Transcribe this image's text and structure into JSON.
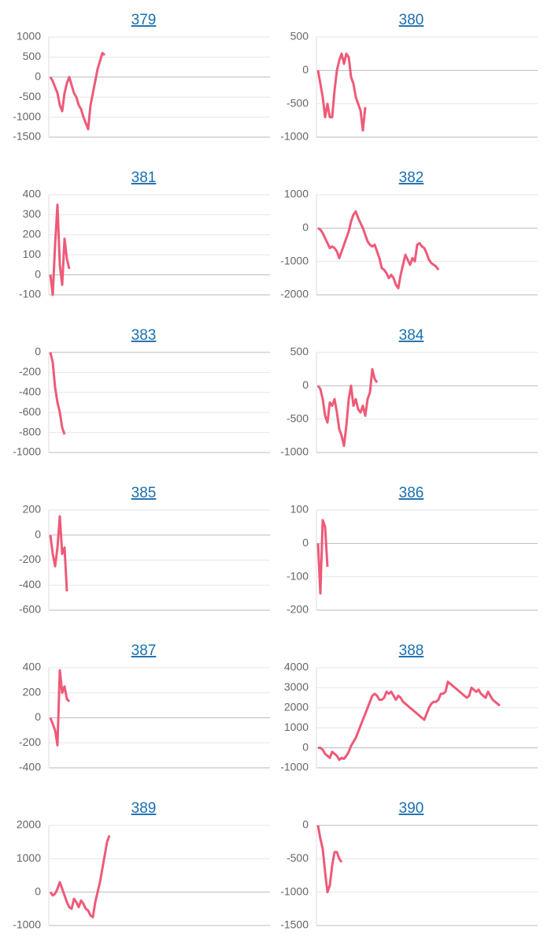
{
  "chart_data": [
    {
      "type": "line",
      "title": "379",
      "color": "#ee5a78",
      "grid": true,
      "ylim": [
        -1500,
        1000
      ],
      "yticks": [
        1000,
        500,
        0,
        -500,
        -1000,
        -1500
      ],
      "values": [
        0,
        -100,
        -250,
        -400,
        -700,
        -850,
        -400,
        -150,
        0,
        -200,
        -400,
        -500,
        -700,
        -800,
        -1000,
        -1150,
        -1300,
        -700,
        -400,
        -100,
        200,
        400,
        600,
        550
      ]
    },
    {
      "type": "line",
      "title": "380",
      "color": "#ee5a78",
      "grid": true,
      "ylim": [
        -1000,
        500
      ],
      "yticks": [
        500,
        0,
        -500,
        -1000
      ],
      "values": [
        0,
        -200,
        -400,
        -700,
        -500,
        -700,
        -700,
        -300,
        0,
        150,
        250,
        100,
        250,
        200,
        -100,
        -200,
        -400,
        -500,
        -600,
        -900,
        -550
      ]
    },
    {
      "type": "line",
      "title": "381",
      "color": "#ee5a78",
      "grid": true,
      "ylim": [
        -100,
        400
      ],
      "yticks": [
        400,
        300,
        200,
        100,
        0,
        -100
      ],
      "values": [
        0,
        -100,
        150,
        350,
        50,
        -50,
        180,
        80,
        30
      ]
    },
    {
      "type": "line",
      "title": "382",
      "color": "#ee5a78",
      "grid": true,
      "ylim": [
        -2000,
        1000
      ],
      "yticks": [
        1000,
        0,
        -1000,
        -2000
      ],
      "values": [
        0,
        -50,
        -150,
        -300,
        -450,
        -600,
        -550,
        -600,
        -700,
        -900,
        -700,
        -500,
        -300,
        -100,
        200,
        400,
        500,
        300,
        150,
        0,
        -200,
        -400,
        -500,
        -550,
        -500,
        -700,
        -900,
        -1200,
        -1250,
        -1350,
        -1500,
        -1400,
        -1500,
        -1700,
        -1800,
        -1400,
        -1100,
        -800,
        -950,
        -1100,
        -900,
        -1000,
        -500,
        -450,
        -550,
        -600,
        -750,
        -950,
        -1050,
        -1100,
        -1150,
        -1250
      ]
    },
    {
      "type": "line",
      "title": "383",
      "color": "#ee5a78",
      "grid": true,
      "ylim": [
        -1000,
        0
      ],
      "yticks": [
        0,
        -200,
        -400,
        -600,
        -800,
        -1000
      ],
      "values": [
        0,
        -100,
        -350,
        -500,
        -600,
        -750,
        -820
      ]
    },
    {
      "type": "line",
      "title": "384",
      "color": "#ee5a78",
      "grid": true,
      "ylim": [
        -1000,
        500
      ],
      "yticks": [
        500,
        0,
        -500,
        -1000
      ],
      "values": [
        0,
        -50,
        -200,
        -450,
        -550,
        -250,
        -300,
        -200,
        -400,
        -650,
        -750,
        -900,
        -600,
        -200,
        0,
        -300,
        -200,
        -350,
        -400,
        -300,
        -450,
        -200,
        -100,
        250,
        100,
        50
      ]
    },
    {
      "type": "line",
      "title": "385",
      "color": "#ee5a78",
      "grid": true,
      "ylim": [
        -600,
        200
      ],
      "yticks": [
        200,
        0,
        -200,
        -400,
        -600
      ],
      "values": [
        0,
        -150,
        -250,
        -100,
        150,
        -150,
        -100,
        -450
      ]
    },
    {
      "type": "line",
      "title": "386",
      "color": "#ee5a78",
      "grid": true,
      "ylim": [
        -200,
        100
      ],
      "yticks": [
        100,
        0,
        -100,
        -200
      ],
      "values": [
        0,
        -150,
        70,
        50,
        -70
      ]
    },
    {
      "type": "line",
      "title": "387",
      "color": "#ee5a78",
      "grid": true,
      "ylim": [
        -400,
        400
      ],
      "yticks": [
        400,
        200,
        0,
        -200,
        -400
      ],
      "values": [
        0,
        -50,
        -100,
        -220,
        380,
        200,
        250,
        150,
        130
      ]
    },
    {
      "type": "line",
      "title": "388",
      "color": "#ee5a78",
      "grid": true,
      "ylim": [
        -1000,
        4000
      ],
      "yticks": [
        4000,
        3000,
        2000,
        1000,
        0,
        -1000
      ],
      "values": [
        0,
        0,
        -100,
        -300,
        -400,
        -500,
        -200,
        -300,
        -400,
        -600,
        -500,
        -550,
        -400,
        -200,
        100,
        300,
        500,
        800,
        1100,
        1400,
        1700,
        2000,
        2300,
        2600,
        2700,
        2600,
        2400,
        2400,
        2500,
        2800,
        2700,
        2800,
        2600,
        2400,
        2600,
        2500,
        2300,
        2200,
        2100,
        2000,
        1900,
        1800,
        1700,
        1600,
        1500,
        1400,
        1700,
        2000,
        2200,
        2300,
        2300,
        2400,
        2700,
        2700,
        2800,
        3300,
        3200,
        3100,
        3000,
        2900,
        2800,
        2700,
        2600,
        2500,
        2600,
        3000,
        2900,
        2800,
        2900,
        2700,
        2600,
        2500,
        2800,
        2600,
        2400,
        2300,
        2200,
        2100
      ]
    },
    {
      "type": "line",
      "title": "389",
      "color": "#ee5a78",
      "grid": true,
      "ylim": [
        -1000,
        2000
      ],
      "yticks": [
        2000,
        1000,
        0,
        -1000
      ],
      "values": [
        0,
        -100,
        -50,
        100,
        300,
        100,
        -100,
        -300,
        -450,
        -500,
        -200,
        -300,
        -450,
        -250,
        -350,
        -500,
        -550,
        -700,
        -750,
        -300,
        0,
        300,
        700,
        1100,
        1500,
        1700
      ]
    },
    {
      "type": "line",
      "title": "390",
      "color": "#ee5a78",
      "grid": true,
      "ylim": [
        -1500,
        0
      ],
      "yticks": [
        0,
        -500,
        -1000,
        -1500
      ],
      "values": [
        0,
        -200,
        -350,
        -700,
        -1000,
        -900,
        -600,
        -400,
        -400,
        -500,
        -550
      ]
    }
  ]
}
